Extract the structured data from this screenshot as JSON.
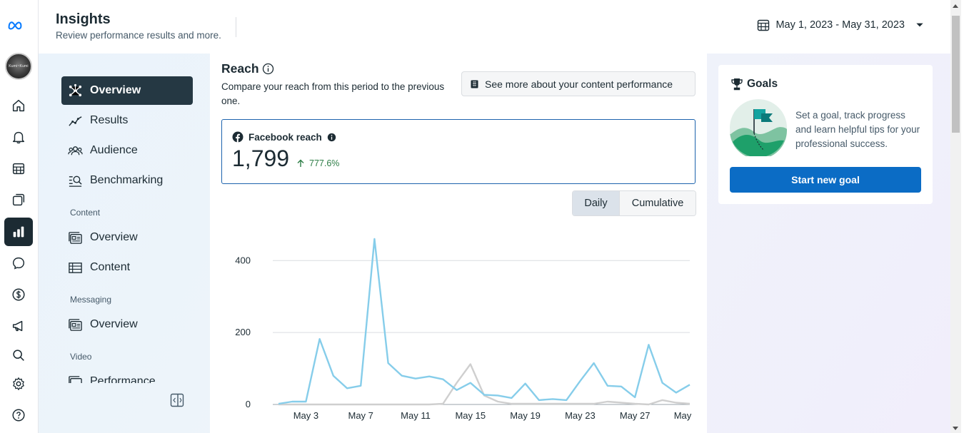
{
  "header": {
    "title": "Insights",
    "subtitle": "Review performance results and more.",
    "date_range": "May 1, 2023 - May 31, 2023"
  },
  "rail": {
    "avatar_text": "Kumi~Kumi",
    "items": [
      "home-icon",
      "notifications-icon",
      "planner-icon",
      "content-icon",
      "insights-icon",
      "inbox-icon",
      "monetization-icon",
      "ads-icon",
      "search-icon",
      "settings-icon",
      "help-icon"
    ]
  },
  "subnav": {
    "items": [
      {
        "label": "Overview",
        "icon": "overview-icon"
      },
      {
        "label": "Results",
        "icon": "results-icon"
      },
      {
        "label": "Audience",
        "icon": "audience-icon"
      },
      {
        "label": "Benchmarking",
        "icon": "benchmarking-icon"
      }
    ],
    "content_section": "Content",
    "content_items": [
      {
        "label": "Overview",
        "icon": "content-overview-icon"
      },
      {
        "label": "Content",
        "icon": "content-table-icon"
      }
    ],
    "messaging_section": "Messaging",
    "messaging_items": [
      {
        "label": "Overview",
        "icon": "messaging-overview-icon"
      }
    ],
    "video_section": "Video",
    "video_items": [
      {
        "label": "Performance",
        "icon": "video-performance-icon"
      }
    ]
  },
  "reach": {
    "title": "Reach",
    "description": "Compare your reach from this period to the previous one.",
    "see_more_label": "See more about your content performance",
    "metric_label": "Facebook reach",
    "metric_value": "1,799",
    "metric_change": "777.6%",
    "toggle": {
      "daily": "Daily",
      "cumulative": "Cumulative"
    }
  },
  "goals": {
    "title": "Goals",
    "description": "Set a goal, track progress and learn helpful tips for your professional success.",
    "button_label": "Start new goal"
  },
  "colors": {
    "current_period": "#86cdea",
    "previous_period": "#cfcfcf",
    "primary_button": "#0b6cc5",
    "nav_active": "#253843",
    "positive": "#2d7d46"
  },
  "chart_data": {
    "type": "line",
    "x_ticks": [
      "May 3",
      "May 7",
      "May 11",
      "May 15",
      "May 19",
      "May 23",
      "May 27",
      "May"
    ],
    "y_ticks": [
      0,
      200,
      400
    ],
    "ylim": [
      0,
      460
    ],
    "grid": true,
    "x": [
      "May 1",
      "May 2",
      "May 3",
      "May 4",
      "May 5",
      "May 6",
      "May 7",
      "May 8",
      "May 9",
      "May 10",
      "May 11",
      "May 12",
      "May 13",
      "May 14",
      "May 15",
      "May 16",
      "May 17",
      "May 18",
      "May 19",
      "May 20",
      "May 21",
      "May 22",
      "May 23",
      "May 24",
      "May 25",
      "May 26",
      "May 27",
      "May 28",
      "May 29",
      "May 30",
      "May 31"
    ],
    "series": [
      {
        "values": [
          2,
          8,
          8,
          182,
          80,
          45,
          52,
          460,
          115,
          80,
          72,
          78,
          70,
          40,
          60,
          27,
          25,
          18,
          58,
          12,
          15,
          12,
          65,
          115,
          52,
          50,
          20,
          166,
          60,
          33,
          55
        ]
      },
      {
        "values": [
          0,
          0,
          0,
          0,
          0,
          0,
          0,
          0,
          0,
          0,
          0,
          0,
          2,
          60,
          112,
          25,
          8,
          2,
          2,
          2,
          2,
          2,
          2,
          2,
          8,
          5,
          2,
          0,
          12,
          5,
          2
        ]
      }
    ]
  }
}
